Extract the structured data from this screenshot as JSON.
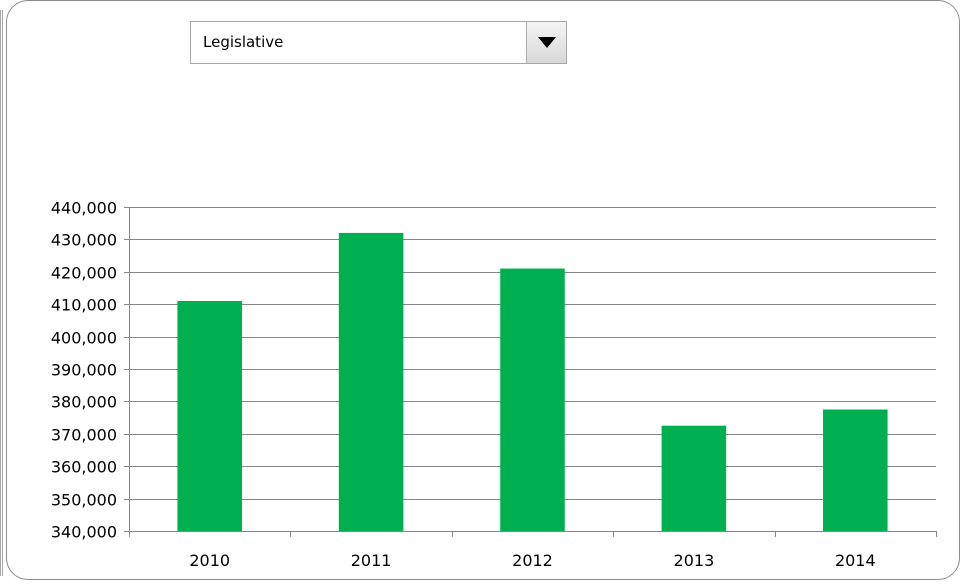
{
  "dropdown": {
    "selected": "Legislative"
  },
  "chart_data": {
    "type": "bar",
    "title": "",
    "xlabel": "",
    "ylabel": "",
    "categories": [
      "2010",
      "2011",
      "2012",
      "2013",
      "2014"
    ],
    "values": [
      411000,
      432000,
      421000,
      372500,
      377500
    ],
    "ylim": [
      340000,
      440000
    ],
    "ytick_step": 10000,
    "ytick_labels": [
      "340,000",
      "350,000",
      "360,000",
      "370,000",
      "380,000",
      "390,000",
      "400,000",
      "410,000",
      "420,000",
      "430,000",
      "440,000"
    ],
    "grid": true,
    "legend": "none",
    "bar_color": "#00b050"
  }
}
